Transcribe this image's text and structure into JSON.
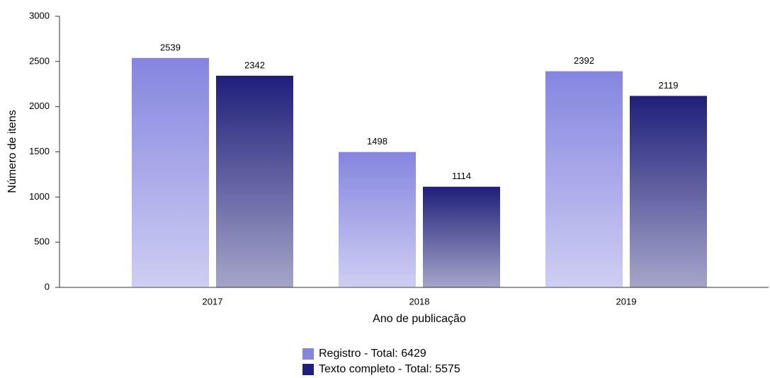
{
  "chart_data": {
    "type": "bar",
    "x_label": "Ano de publicação",
    "y_label": "Número de itens",
    "categories": [
      "2017",
      "2018",
      "2019"
    ],
    "series": [
      {
        "name": "Registro - Total: 6429",
        "color": "#8585e0",
        "values": [
          2539,
          1498,
          2392
        ]
      },
      {
        "name": "Texto completo - Total: 5575",
        "color": "#1f1f7a",
        "values": [
          2342,
          1114,
          2119
        ]
      }
    ],
    "ylim": [
      0,
      3000
    ],
    "yticks": [
      0,
      500,
      1000,
      1500,
      2000,
      2500,
      3000
    ],
    "grid": false,
    "legend": "bottom"
  }
}
